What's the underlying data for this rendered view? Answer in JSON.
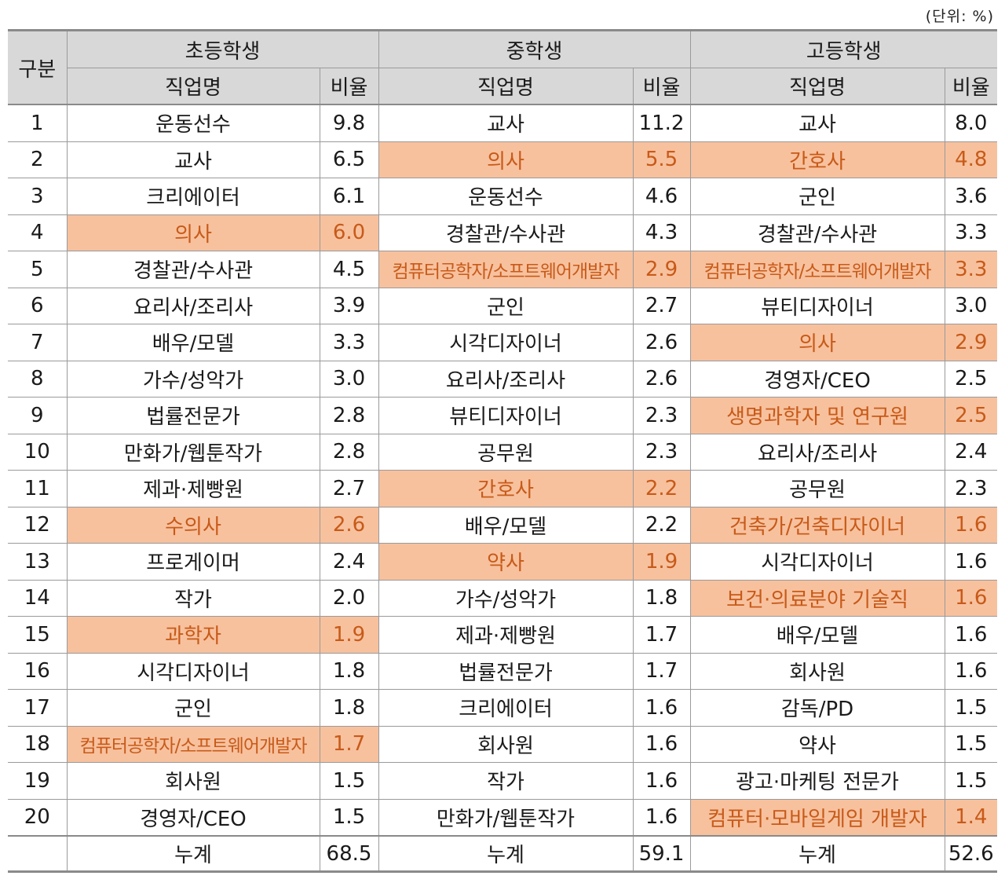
{
  "unit_note": "(단위: %)",
  "header": {
    "rank": "구분",
    "groups": [
      "초등학생",
      "중학생",
      "고등학생"
    ],
    "job_col": "직업명",
    "ratio_col": "비율"
  },
  "colors": {
    "highlight_bg": "#f7c19e",
    "highlight_text": "#c85a18",
    "header_bg": "#d8d8d8"
  },
  "rows": [
    {
      "rank": "1",
      "e_job": "운동선수",
      "e_ratio": "9.8",
      "m_job": "교사",
      "m_ratio": "11.2",
      "h_job": "교사",
      "h_ratio": "8.0"
    },
    {
      "rank": "2",
      "e_job": "교사",
      "e_ratio": "6.5",
      "m_job": "의사",
      "m_ratio": "5.5",
      "h_job": "간호사",
      "h_ratio": "4.8"
    },
    {
      "rank": "3",
      "e_job": "크리에이터",
      "e_ratio": "6.1",
      "m_job": "운동선수",
      "m_ratio": "4.6",
      "h_job": "군인",
      "h_ratio": "3.6"
    },
    {
      "rank": "4",
      "e_job": "의사",
      "e_ratio": "6.0",
      "m_job": "경찰관/수사관",
      "m_ratio": "4.3",
      "h_job": "경찰관/수사관",
      "h_ratio": "3.3"
    },
    {
      "rank": "5",
      "e_job": "경찰관/수사관",
      "e_ratio": "4.5",
      "m_job": "컴퓨터공학자/소프트웨어개발자",
      "m_ratio": "2.9",
      "h_job": "컴퓨터공학자/소프트웨어개발자",
      "h_ratio": "3.3"
    },
    {
      "rank": "6",
      "e_job": "요리사/조리사",
      "e_ratio": "3.9",
      "m_job": "군인",
      "m_ratio": "2.7",
      "h_job": "뷰티디자이너",
      "h_ratio": "3.0"
    },
    {
      "rank": "7",
      "e_job": "배우/모델",
      "e_ratio": "3.3",
      "m_job": "시각디자이너",
      "m_ratio": "2.6",
      "h_job": "의사",
      "h_ratio": "2.9"
    },
    {
      "rank": "8",
      "e_job": "가수/성악가",
      "e_ratio": "3.0",
      "m_job": "요리사/조리사",
      "m_ratio": "2.6",
      "h_job": "경영자/CEO",
      "h_ratio": "2.5"
    },
    {
      "rank": "9",
      "e_job": "법률전문가",
      "e_ratio": "2.8",
      "m_job": "뷰티디자이너",
      "m_ratio": "2.3",
      "h_job": "생명과학자 및 연구원",
      "h_ratio": "2.5"
    },
    {
      "rank": "10",
      "e_job": "만화가/웹툰작가",
      "e_ratio": "2.8",
      "m_job": "공무원",
      "m_ratio": "2.3",
      "h_job": "요리사/조리사",
      "h_ratio": "2.4"
    },
    {
      "rank": "11",
      "e_job": "제과·제빵원",
      "e_ratio": "2.7",
      "m_job": "간호사",
      "m_ratio": "2.2",
      "h_job": "공무원",
      "h_ratio": "2.3"
    },
    {
      "rank": "12",
      "e_job": "수의사",
      "e_ratio": "2.6",
      "m_job": "배우/모델",
      "m_ratio": "2.2",
      "h_job": "건축가/건축디자이너",
      "h_ratio": "1.6"
    },
    {
      "rank": "13",
      "e_job": "프로게이머",
      "e_ratio": "2.4",
      "m_job": "약사",
      "m_ratio": "1.9",
      "h_job": "시각디자이너",
      "h_ratio": "1.6"
    },
    {
      "rank": "14",
      "e_job": "작가",
      "e_ratio": "2.0",
      "m_job": "가수/성악가",
      "m_ratio": "1.8",
      "h_job": "보건·의료분야 기술직",
      "h_ratio": "1.6"
    },
    {
      "rank": "15",
      "e_job": "과학자",
      "e_ratio": "1.9",
      "m_job": "제과·제빵원",
      "m_ratio": "1.7",
      "h_job": "배우/모델",
      "h_ratio": "1.6"
    },
    {
      "rank": "16",
      "e_job": "시각디자이너",
      "e_ratio": "1.8",
      "m_job": "법률전문가",
      "m_ratio": "1.7",
      "h_job": "회사원",
      "h_ratio": "1.6"
    },
    {
      "rank": "17",
      "e_job": "군인",
      "e_ratio": "1.8",
      "m_job": "크리에이터",
      "m_ratio": "1.6",
      "h_job": "감독/PD",
      "h_ratio": "1.5"
    },
    {
      "rank": "18",
      "e_job": "컴퓨터공학자/소프트웨어개발자",
      "e_ratio": "1.7",
      "m_job": "회사원",
      "m_ratio": "1.6",
      "h_job": "약사",
      "h_ratio": "1.5"
    },
    {
      "rank": "19",
      "e_job": "회사원",
      "e_ratio": "1.5",
      "m_job": "작가",
      "m_ratio": "1.6",
      "h_job": "광고·마케팅 전문가",
      "h_ratio": "1.5"
    },
    {
      "rank": "20",
      "e_job": "경영자/CEO",
      "e_ratio": "1.5",
      "m_job": "만화가/웹툰작가",
      "m_ratio": "1.6",
      "h_job": "컴퓨터·모바일게임 개발자",
      "h_ratio": "1.4"
    }
  ],
  "highlights": {
    "elementary": [
      "4",
      "12",
      "15",
      "18"
    ],
    "middle": [
      "2",
      "5",
      "11",
      "13"
    ],
    "high": [
      "2",
      "5",
      "7",
      "9",
      "12",
      "14",
      "20"
    ]
  },
  "totals": {
    "label": "누계",
    "elementary": "68.5",
    "middle": "59.1",
    "high": "52.6"
  }
}
